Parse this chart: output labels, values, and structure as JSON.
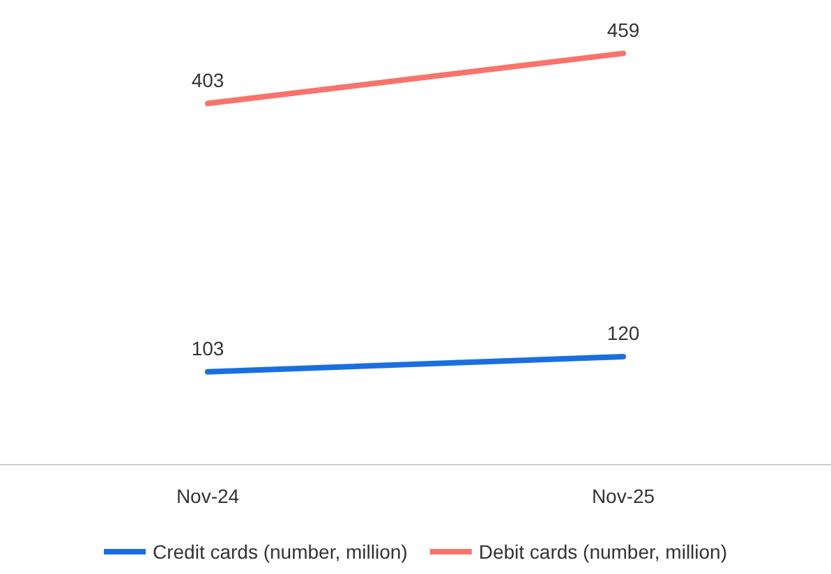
{
  "chart_data": {
    "type": "line",
    "categories": [
      "Nov-24",
      "Nov-25"
    ],
    "series": [
      {
        "name": "Credit cards (number, million)",
        "color": "#1a6fe0",
        "values": [
          103,
          120
        ]
      },
      {
        "name": "Debit cards (number, million)",
        "color": "#f8736a",
        "values": [
          403,
          459
        ]
      }
    ],
    "data_labels": true,
    "legend": "bottom",
    "grid": false,
    "marker": "none",
    "line_style": "solid"
  }
}
